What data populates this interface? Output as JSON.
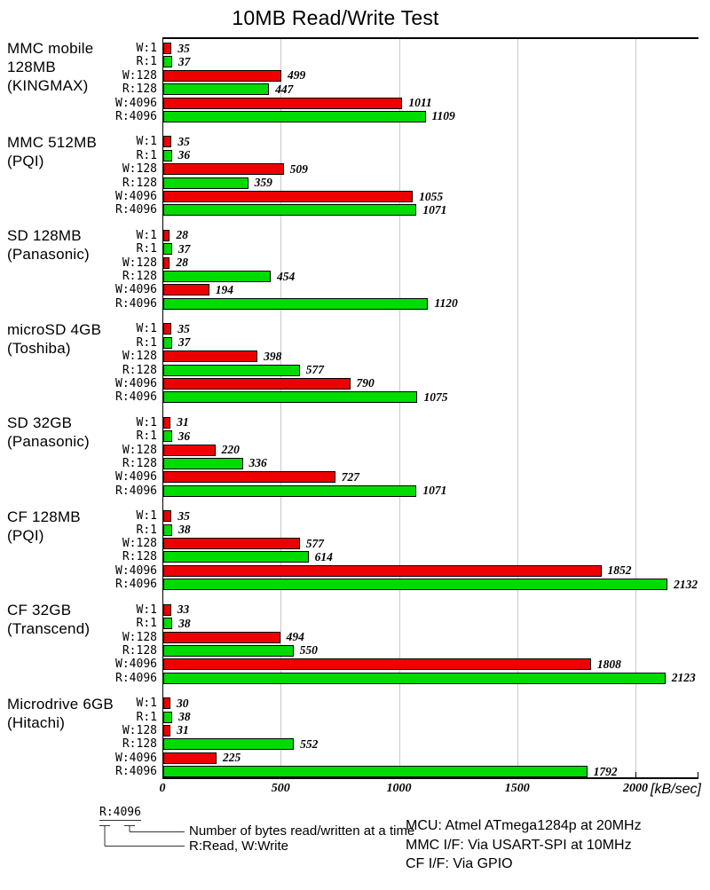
{
  "title": "10MB Read/Write Test",
  "axis": {
    "unit_label": "[kB/sec]",
    "ticks": [
      0,
      500,
      1000,
      1500,
      2000
    ],
    "gridline_step": 500
  },
  "colors": {
    "write": "#EE0000",
    "read": "#00DC00",
    "gridline": "#C9C9C9",
    "axis": "#000000"
  },
  "legend": {
    "example": "R:4096",
    "bytes_note": "Number of bytes read/written at a time",
    "rw_note": "R:Read, W:Write"
  },
  "notes": [
    "MCU: Atmel ATmega1284p at 20MHz",
    "MMC I/F: Via USART-SPI at 10MHz",
    "CF I/F: Via GPIO"
  ],
  "chart_data": {
    "type": "bar",
    "orientation": "horizontal",
    "title": "10MB Read/Write Test",
    "xlabel": "[kB/sec]",
    "xlim": [
      0,
      2266
    ],
    "grid": true,
    "bar_labels": [
      "W:1",
      "R:1",
      "W:128",
      "R:128",
      "W:4096",
      "R:4096"
    ],
    "write_read_pattern": [
      "write",
      "read",
      "write",
      "read",
      "write",
      "read"
    ],
    "groups": [
      {
        "name_lines": [
          "MMC mobile",
          "128MB",
          "(KINGMAX)"
        ],
        "values": [
          35,
          37,
          499,
          447,
          1011,
          1109
        ]
      },
      {
        "name_lines": [
          "MMC 512MB",
          "(PQI)"
        ],
        "values": [
          35,
          36,
          509,
          359,
          1055,
          1071
        ]
      },
      {
        "name_lines": [
          "SD 128MB",
          "(Panasonic)"
        ],
        "values": [
          28,
          37,
          28,
          454,
          194,
          1120
        ]
      },
      {
        "name_lines": [
          "microSD 4GB",
          "(Toshiba)"
        ],
        "values": [
          35,
          37,
          398,
          577,
          790,
          1075
        ]
      },
      {
        "name_lines": [
          "SD 32GB",
          "(Panasonic)"
        ],
        "values": [
          31,
          36,
          220,
          336,
          727,
          1071
        ]
      },
      {
        "name_lines": [
          "CF 128MB",
          "(PQI)"
        ],
        "values": [
          35,
          38,
          577,
          614,
          1852,
          2132
        ]
      },
      {
        "name_lines": [
          "CF 32GB",
          "(Transcend)"
        ],
        "values": [
          33,
          38,
          494,
          550,
          1808,
          2123
        ]
      },
      {
        "name_lines": [
          "Microdrive 6GB",
          "(Hitachi)"
        ],
        "values": [
          30,
          38,
          31,
          552,
          225,
          1792
        ]
      }
    ]
  }
}
